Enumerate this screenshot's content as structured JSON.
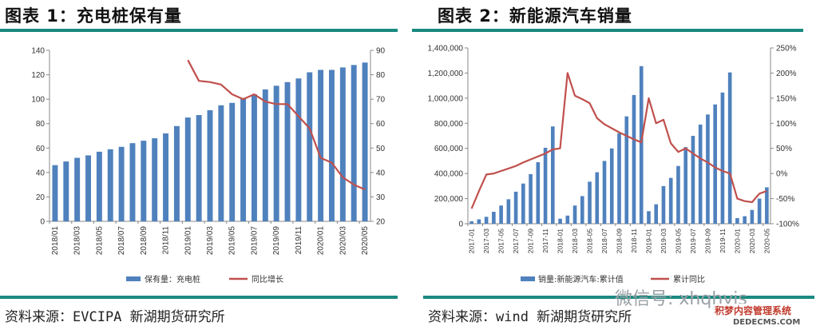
{
  "left": {
    "title": "图表 1：充电桩保有量",
    "source": "资料来源：EVCIPA 新湖期货研究所"
  },
  "right": {
    "title": "图表 2：新能源汽车销量",
    "source": "资料来源：wind 新湖期货研究所"
  },
  "watermark": {
    "text": "微信号: xhqhyjs",
    "site_text": "积梦内容管理系统",
    "site_url": "DEDECMS.COM"
  },
  "colors": {
    "bar": "#4f81bd",
    "line": "#c0504d",
    "accent": "#1a8a80"
  },
  "chart_data": [
    {
      "type": "bar",
      "categories": [
        "2018/01",
        "2018/02",
        "2018/03",
        "2018/04",
        "2018/05",
        "2018/06",
        "2018/07",
        "2018/08",
        "2018/09",
        "2018/10",
        "2018/11",
        "2018/12",
        "2019/01",
        "2019/02",
        "2019/03",
        "2019/04",
        "2019/05",
        "2019/06",
        "2019/07",
        "2019/08",
        "2019/09",
        "2019/10",
        "2019/11",
        "2019/12",
        "2020/01",
        "2020/02",
        "2020/03",
        "2020/04",
        "2020/05"
      ],
      "x_tick_labels": [
        "2018/01",
        "2018/03",
        "2018/05",
        "2018/07",
        "2018/09",
        "2018/11",
        "2019/01",
        "2019/03",
        "2019/05",
        "2019/07",
        "2019/09",
        "2019/11",
        "2020/01",
        "2020/03",
        "2020/05"
      ],
      "series": [
        {
          "name": "保有量：充电桩",
          "type": "bar",
          "axis": "left",
          "values": [
            46,
            49,
            52,
            54,
            57,
            59,
            61,
            64,
            66,
            68,
            72,
            78,
            85,
            87,
            91,
            95,
            97,
            101,
            104,
            108,
            111,
            114,
            117,
            122,
            124,
            124,
            126,
            128,
            130
          ]
        },
        {
          "name": "同比增长",
          "type": "line",
          "axis": "right",
          "values": [
            null,
            null,
            null,
            null,
            null,
            null,
            null,
            null,
            null,
            null,
            null,
            null,
            86,
            77.5,
            77,
            76,
            72,
            70,
            72,
            69,
            68,
            68,
            63,
            58,
            46,
            44,
            38,
            35,
            33
          ]
        }
      ],
      "y_left": {
        "lim": [
          0,
          140
        ],
        "ticks": [
          "0",
          "20",
          "40",
          "60",
          "80",
          "100",
          "120",
          "140"
        ]
      },
      "y_right": {
        "lim": [
          20,
          90
        ],
        "ticks": [
          "20",
          "30",
          "40",
          "50",
          "60",
          "70",
          "80",
          "90"
        ]
      },
      "grid": false,
      "legend_position": "bottom"
    },
    {
      "type": "bar",
      "categories": [
        "2017-01",
        "2017-02",
        "2017-03",
        "2017-04",
        "2017-05",
        "2017-06",
        "2017-07",
        "2017-08",
        "2017-09",
        "2017-10",
        "2017-11",
        "2017-12",
        "2018-01",
        "2018-02",
        "2018-03",
        "2018-04",
        "2018-05",
        "2018-06",
        "2018-07",
        "2018-08",
        "2018-09",
        "2018-10",
        "2018-11",
        "2018-12",
        "2019-01",
        "2019-02",
        "2019-03",
        "2019-04",
        "2019-05",
        "2019-06",
        "2019-07",
        "2019-08",
        "2019-09",
        "2019-10",
        "2019-11",
        "2019-12",
        "2020-01",
        "2020-02",
        "2020-03",
        "2020-04",
        "2020-05"
      ],
      "x_tick_labels": [
        "2017-01",
        "2017-03",
        "2017-05",
        "2017-07",
        "2017-09",
        "2017-11",
        "2018-01",
        "2018-03",
        "2018-05",
        "2018-07",
        "2018-09",
        "2018-11",
        "2019-01",
        "2019-03",
        "2019-05",
        "2019-07",
        "2019-09",
        "2019-11",
        "2020-01",
        "2020-03",
        "2020-05"
      ],
      "series": [
        {
          "name": "销量:新能源汽车:累计值",
          "type": "bar",
          "axis": "left",
          "values": [
            20000,
            35000,
            55000,
            95000,
            145000,
            195000,
            255000,
            320000,
            395000,
            490000,
            605000,
            775000,
            40000,
            65000,
            145000,
            220000,
            335000,
            410000,
            500000,
            600000,
            720000,
            855000,
            1025000,
            1255000,
            100000,
            155000,
            300000,
            365000,
            460000,
            610000,
            700000,
            790000,
            870000,
            950000,
            1045000,
            1205000,
            45000,
            60000,
            110000,
            200000,
            290000
          ]
        },
        {
          "name": "累计同比",
          "type": "line",
          "axis": "right",
          "values": [
            -70,
            -35,
            -2,
            0,
            5,
            10,
            15,
            22,
            28,
            34,
            40,
            48,
            50,
            200,
            155,
            148,
            140,
            110,
            98,
            90,
            82,
            75,
            68,
            62,
            150,
            100,
            107,
            60,
            43,
            50,
            40,
            30,
            22,
            12,
            5,
            0,
            -50,
            -55,
            -57,
            -40,
            -35
          ]
        }
      ],
      "y_left": {
        "lim": [
          0,
          1400000
        ],
        "ticks": [
          "0",
          "200,000",
          "400,000",
          "600,000",
          "800,000",
          "1,000,000",
          "1,200,000",
          "1,400,000"
        ]
      },
      "y_right": {
        "lim": [
          -100,
          250
        ],
        "ticks": [
          "-100%",
          "-50%",
          "0%",
          "50%",
          "100%",
          "150%",
          "200%",
          "250%"
        ]
      },
      "grid": false,
      "legend_position": "bottom"
    }
  ]
}
